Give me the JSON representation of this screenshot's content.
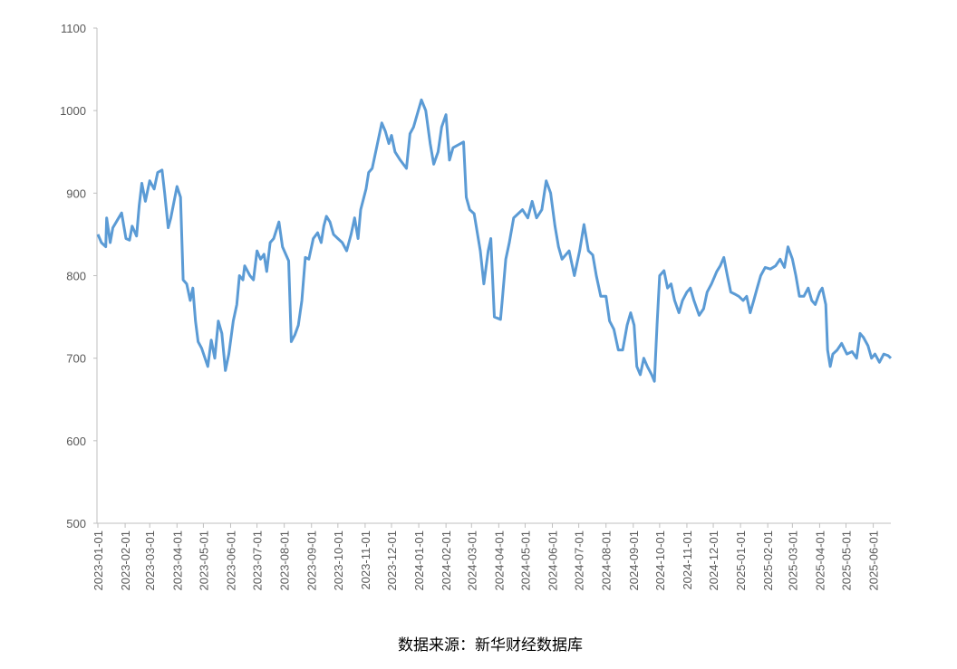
{
  "chart_data": {
    "type": "line",
    "color": "#5b9bd5",
    "grid": false,
    "source": "数据来源：新华财经数据库",
    "ylim": [
      500,
      1100
    ],
    "yticks": [
      500,
      600,
      700,
      800,
      900,
      1000,
      1100
    ],
    "xlim": [
      "2023-01-01",
      "2025-06-21"
    ],
    "xticks": [
      "2023-01-01",
      "2023-02-01",
      "2023-03-01",
      "2023-04-01",
      "2023-05-01",
      "2023-06-01",
      "2023-07-01",
      "2023-08-01",
      "2023-09-01",
      "2023-10-01",
      "2023-11-01",
      "2023-12-01",
      "2024-01-01",
      "2024-02-01",
      "2024-03-01",
      "2024-04-01",
      "2024-05-01",
      "2024-06-01",
      "2024-07-01",
      "2024-08-01",
      "2024-09-01",
      "2024-10-01",
      "2024-11-01",
      "2024-12-01",
      "2025-01-01",
      "2025-02-01",
      "2025-03-01",
      "2025-04-01",
      "2025-05-01",
      "2025-06-01"
    ],
    "x": [
      "2023-01-01",
      "2023-01-05",
      "2023-01-10",
      "2023-01-11",
      "2023-01-15",
      "2023-01-18",
      "2023-01-28",
      "2023-02-02",
      "2023-02-06",
      "2023-02-09",
      "2023-02-14",
      "2023-02-17",
      "2023-02-20",
      "2023-02-24",
      "2023-03-01",
      "2023-03-06",
      "2023-03-10",
      "2023-03-15",
      "2023-03-18",
      "2023-03-22",
      "2023-03-25",
      "2023-04-01",
      "2023-04-05",
      "2023-04-08",
      "2023-04-12",
      "2023-04-16",
      "2023-04-19",
      "2023-04-22",
      "2023-04-25",
      "2023-04-29",
      "2023-05-06",
      "2023-05-10",
      "2023-05-14",
      "2023-05-18",
      "2023-05-22",
      "2023-05-26",
      "2023-05-30",
      "2023-06-04",
      "2023-06-08",
      "2023-06-11",
      "2023-06-15",
      "2023-06-17",
      "2023-06-23",
      "2023-06-27",
      "2023-07-01",
      "2023-07-05",
      "2023-07-09",
      "2023-07-12",
      "2023-07-16",
      "2023-07-20",
      "2023-07-26",
      "2023-07-30",
      "2023-08-06",
      "2023-08-09",
      "2023-08-13",
      "2023-08-17",
      "2023-08-21",
      "2023-08-25",
      "2023-08-29",
      "2023-09-03",
      "2023-09-08",
      "2023-09-12",
      "2023-09-15",
      "2023-09-18",
      "2023-09-22",
      "2023-09-26",
      "2023-10-01",
      "2023-10-06",
      "2023-10-11",
      "2023-10-16",
      "2023-10-20",
      "2023-10-24",
      "2023-10-27",
      "2023-11-02",
      "2023-11-05",
      "2023-11-09",
      "2023-11-12",
      "2023-11-15",
      "2023-11-20",
      "2023-11-24",
      "2023-11-28",
      "2023-12-01",
      "2023-12-05",
      "2023-12-11",
      "2023-12-18",
      "2023-12-22",
      "2023-12-26",
      "2024-01-04",
      "2024-01-09",
      "2024-01-14",
      "2024-01-18",
      "2024-01-23",
      "2024-01-27",
      "2024-02-01",
      "2024-02-05",
      "2024-02-09",
      "2024-02-21",
      "2024-02-24",
      "2024-02-28",
      "2024-03-04",
      "2024-03-11",
      "2024-03-15",
      "2024-03-20",
      "2024-03-23",
      "2024-03-27",
      "2024-04-03",
      "2024-04-05",
      "2024-04-09",
      "2024-04-13",
      "2024-04-18",
      "2024-04-23",
      "2024-04-28",
      "2024-05-04",
      "2024-05-09",
      "2024-05-14",
      "2024-05-20",
      "2024-05-25",
      "2024-05-30",
      "2024-06-04",
      "2024-06-08",
      "2024-06-12",
      "2024-06-16",
      "2024-06-20",
      "2024-06-26",
      "2024-07-02",
      "2024-07-07",
      "2024-07-12",
      "2024-07-17",
      "2024-07-21",
      "2024-07-26",
      "2024-08-01",
      "2024-08-05",
      "2024-08-10",
      "2024-08-15",
      "2024-08-20",
      "2024-08-25",
      "2024-08-29",
      "2024-09-02",
      "2024-09-05",
      "2024-09-09",
      "2024-09-13",
      "2024-09-17",
      "2024-09-22",
      "2024-09-25",
      "2024-09-28",
      "2024-10-01",
      "2024-10-06",
      "2024-10-10",
      "2024-10-14",
      "2024-10-18",
      "2024-10-23",
      "2024-10-27",
      "2024-11-01",
      "2024-11-05",
      "2024-11-09",
      "2024-11-15",
      "2024-11-20",
      "2024-11-24",
      "2024-11-29",
      "2024-12-05",
      "2024-12-09",
      "2024-12-13",
      "2024-12-17",
      "2024-12-21",
      "2024-12-25",
      "2024-12-30",
      "2025-01-04",
      "2025-01-08",
      "2025-01-12",
      "2025-01-16",
      "2025-01-20",
      "2025-01-24",
      "2025-01-29",
      "2025-02-04",
      "2025-02-10",
      "2025-02-15",
      "2025-02-20",
      "2025-02-24",
      "2025-03-01",
      "2025-03-05",
      "2025-03-09",
      "2025-03-14",
      "2025-03-19",
      "2025-03-23",
      "2025-03-27",
      "2025-04-01",
      "2025-04-04",
      "2025-04-08",
      "2025-04-10",
      "2025-04-13",
      "2025-04-16",
      "2025-04-21",
      "2025-04-26",
      "2025-05-02",
      "2025-05-08",
      "2025-05-13",
      "2025-05-17",
      "2025-05-21",
      "2025-05-26",
      "2025-05-30",
      "2025-06-03",
      "2025-06-08",
      "2025-06-13",
      "2025-06-18",
      "2025-06-21"
    ],
    "values": [
      850,
      840,
      835,
      870,
      840,
      858,
      876,
      845,
      843,
      860,
      848,
      885,
      912,
      890,
      915,
      905,
      925,
      928,
      900,
      858,
      870,
      908,
      895,
      795,
      790,
      770,
      785,
      745,
      720,
      712,
      690,
      722,
      700,
      745,
      730,
      685,
      705,
      745,
      765,
      800,
      795,
      812,
      800,
      795,
      830,
      820,
      826,
      805,
      840,
      845,
      865,
      835,
      818,
      720,
      728,
      740,
      770,
      822,
      820,
      845,
      852,
      840,
      860,
      872,
      865,
      850,
      845,
      840,
      830,
      850,
      870,
      845,
      880,
      905,
      925,
      930,
      945,
      960,
      985,
      975,
      960,
      970,
      950,
      940,
      930,
      972,
      980,
      1013,
      1000,
      960,
      935,
      950,
      980,
      995,
      940,
      955,
      962,
      895,
      880,
      875,
      830,
      790,
      830,
      845,
      750,
      747,
      770,
      820,
      840,
      870,
      875,
      880,
      870,
      890,
      870,
      880,
      915,
      900,
      860,
      835,
      820,
      825,
      830,
      800,
      830,
      862,
      830,
      825,
      800,
      775,
      775,
      745,
      735,
      710,
      710,
      740,
      755,
      740,
      690,
      680,
      700,
      690,
      680,
      672,
      740,
      800,
      806,
      785,
      790,
      770,
      755,
      770,
      780,
      785,
      770,
      752,
      760,
      780,
      790,
      805,
      812,
      822,
      800,
      780,
      778,
      775,
      770,
      775,
      755,
      770,
      785,
      800,
      810,
      808,
      812,
      820,
      810,
      835,
      820,
      800,
      775,
      775,
      785,
      770,
      765,
      780,
      785,
      765,
      710,
      690,
      705,
      710,
      718,
      705,
      708,
      700,
      730,
      725,
      715,
      700,
      705,
      695,
      705,
      703,
      700
    ]
  }
}
